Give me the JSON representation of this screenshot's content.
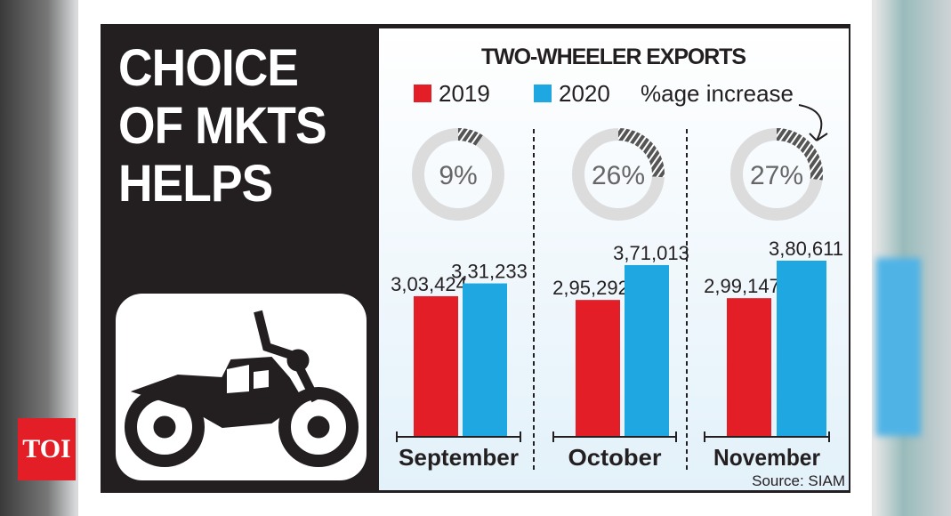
{
  "headline": [
    "CHOICE",
    "OF MKTS",
    "HELPS"
  ],
  "logo": "TOI",
  "chart_data": {
    "type": "bar",
    "title": "TWO-WHEELER EXPORTS",
    "categories": [
      "September",
      "October",
      "November"
    ],
    "series": [
      {
        "name": "2019",
        "color": "#e41e26",
        "values": [
          303424,
          295292,
          299147
        ],
        "labels": [
          "3,03,424",
          "2,95,292",
          "2,99,147"
        ]
      },
      {
        "name": "2020",
        "color": "#1ea7e1",
        "values": [
          331233,
          371013,
          380611
        ],
        "labels": [
          "3,31,233",
          "3,71,013",
          "3,80,611"
        ]
      }
    ],
    "percent_increase": {
      "label": "%age increase",
      "values": [
        9,
        26,
        27
      ]
    },
    "source": "Source: SIAM",
    "ylim": [
      0,
      380611
    ],
    "grid": false,
    "legend": "top"
  }
}
